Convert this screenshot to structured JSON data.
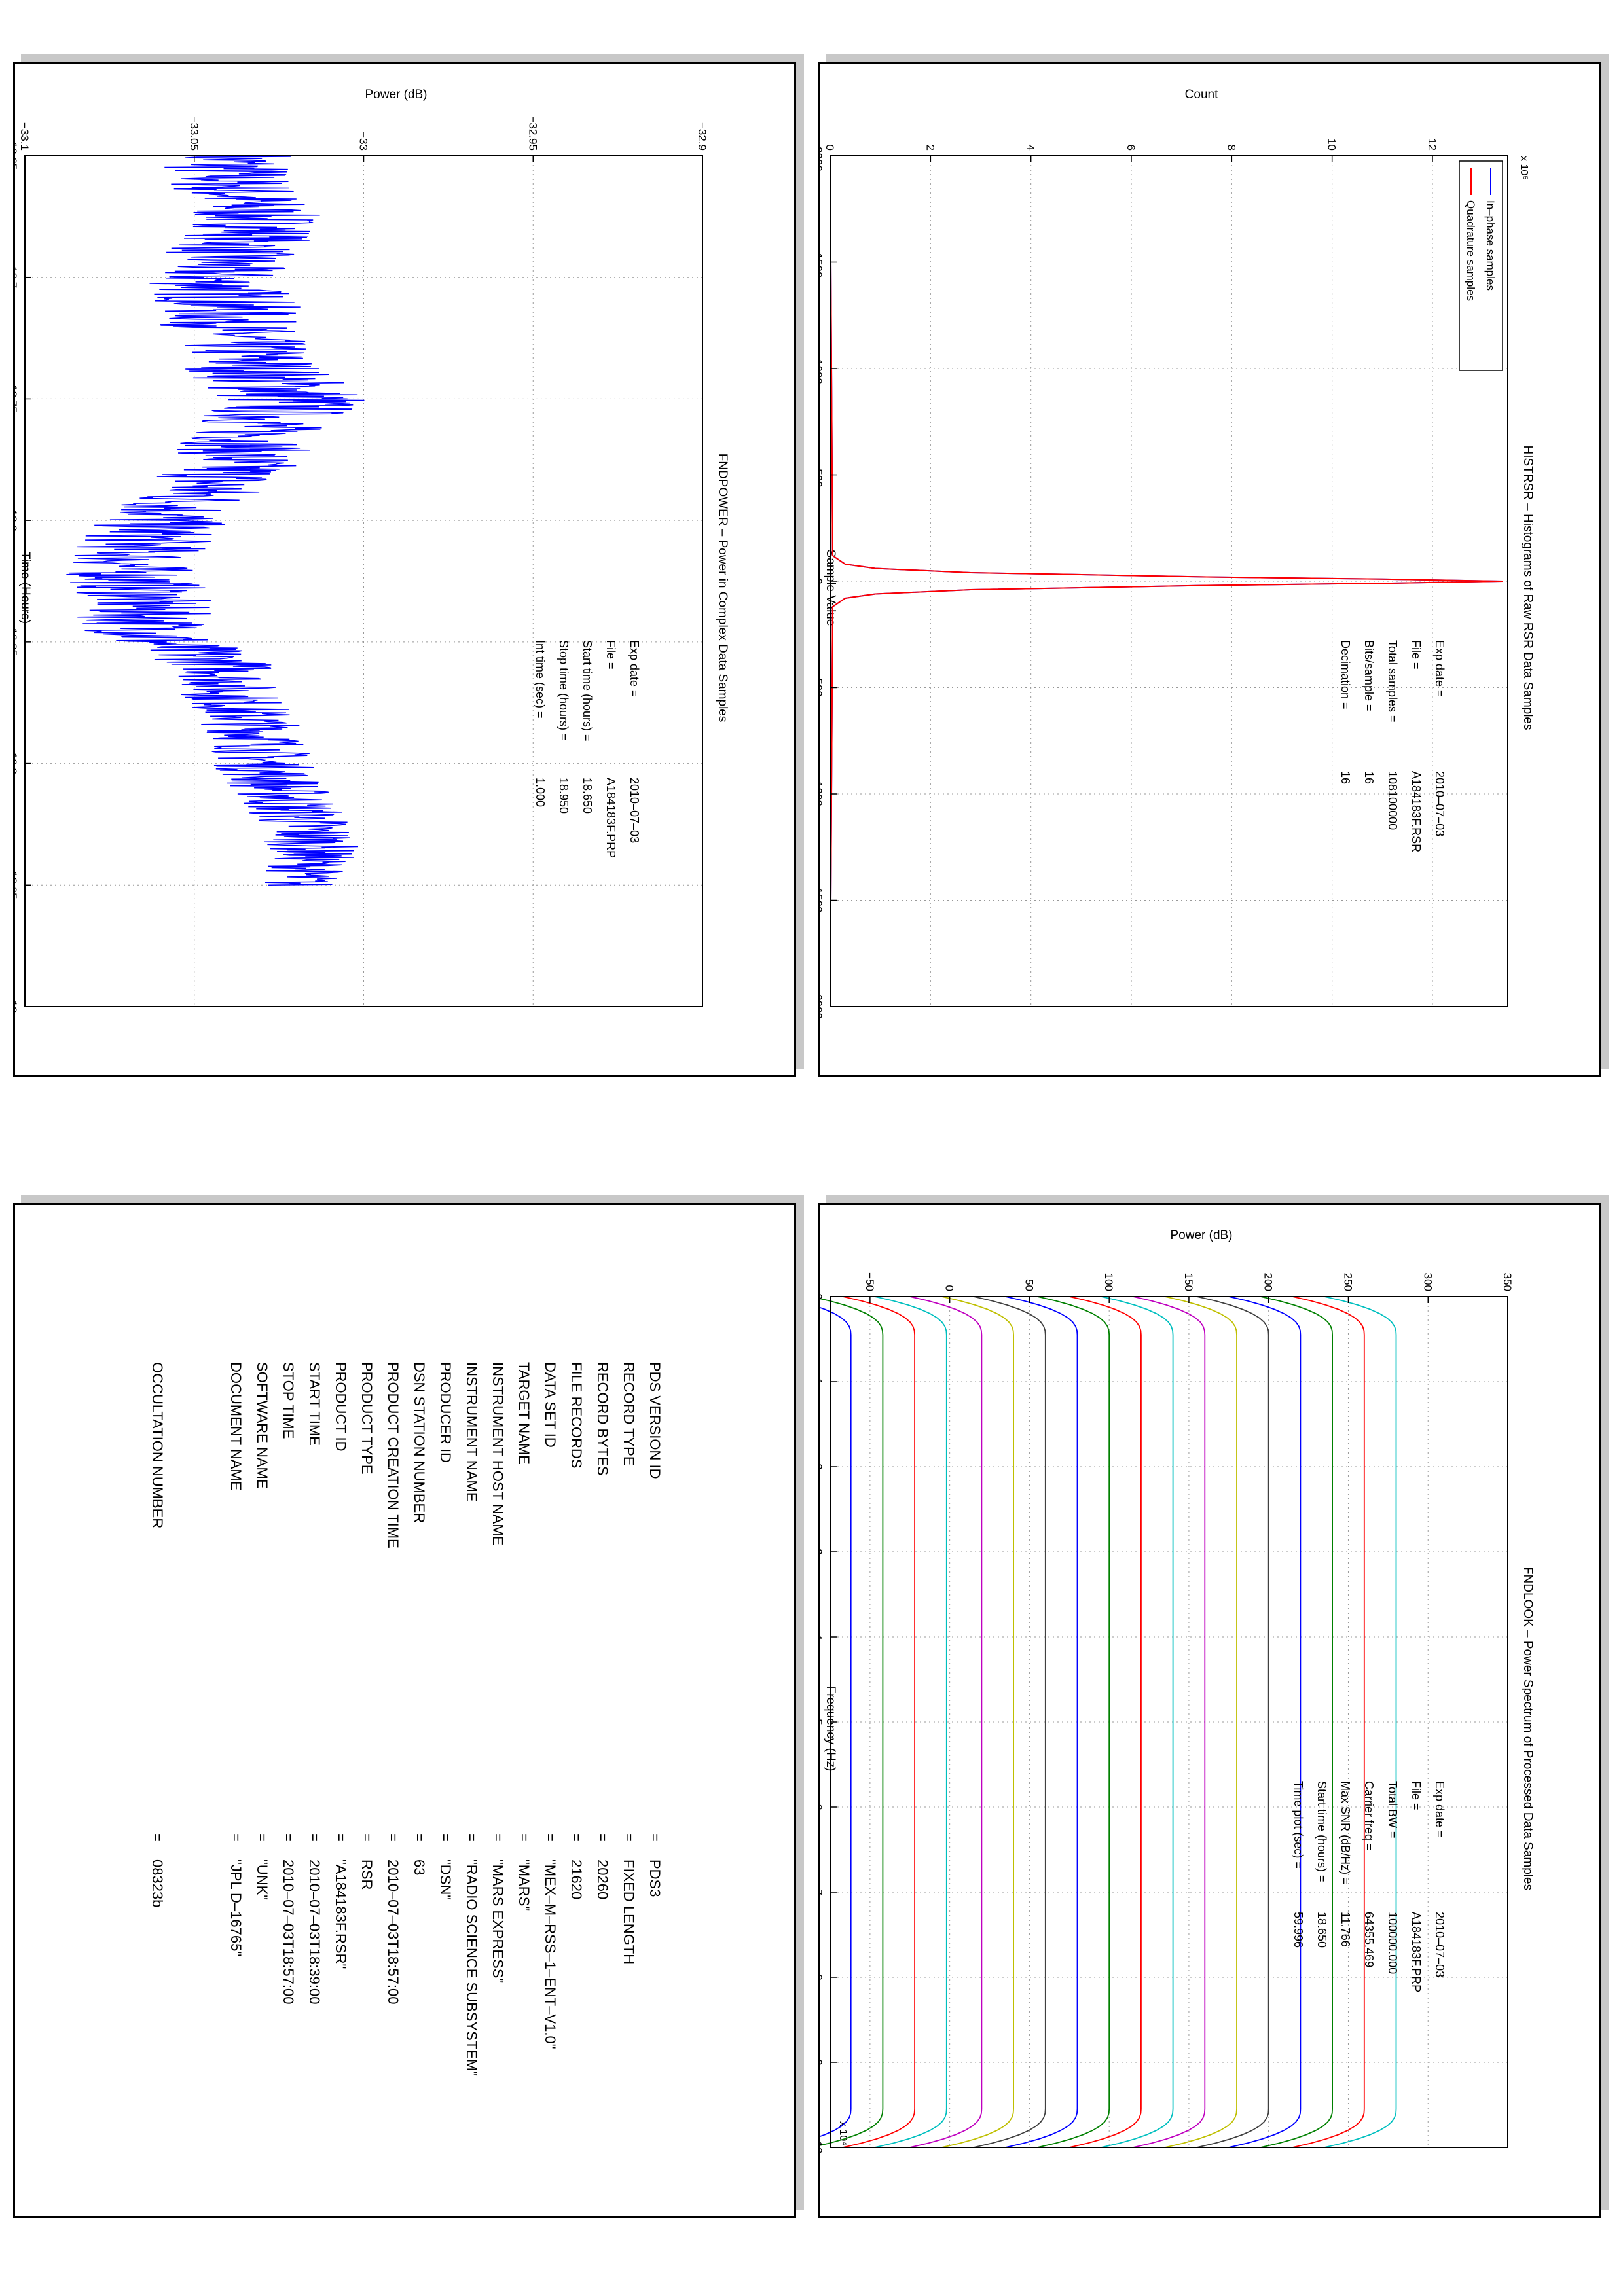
{
  "colors": {
    "inphase": "#0000ff",
    "quadrature": "#ff0000",
    "power_trace": "#0000ff",
    "grid": "#999999",
    "panel_shadow": "#c8c8c8",
    "look_series": [
      "#0000ff",
      "#008000",
      "#ff0000",
      "#00bfbf",
      "#bf00bf",
      "#bfbf00",
      "#404040",
      "#0000ff",
      "#008000",
      "#ff0000",
      "#00bfbf",
      "#bf00bf",
      "#bfbf00",
      "#404040",
      "#0000ff",
      "#008000",
      "#ff0000",
      "#00bfbf"
    ]
  },
  "chart_data": [
    {
      "id": "histrsr",
      "type": "line",
      "title": "HISTRSR – Histograms of Raw RSR Data Samples",
      "xlabel": "Sample Value",
      "ylabel": "Count",
      "y_multiplier": "x 10⁵",
      "xlim": [
        -2000,
        2000
      ],
      "ylim": [
        0,
        13.5
      ],
      "xticks": [
        -2000,
        -1500,
        -1000,
        -500,
        0,
        500,
        1000,
        1500,
        2000
      ],
      "xtick_labels": [
        "−2000",
        "−1500",
        "−1000",
        "−500",
        "0",
        "500",
        "1000",
        "1500",
        "2000"
      ],
      "yticks": [
        0,
        2,
        4,
        6,
        8,
        10,
        12
      ],
      "grid": true,
      "legend_position": "top-left",
      "series": [
        {
          "name": "In–phase samples",
          "color": "#0000ff",
          "x": [
            -2000,
            -120,
            -80,
            -60,
            -40,
            -20,
            -10,
            0,
            10,
            20,
            40,
            60,
            80,
            120,
            2000
          ],
          "y": [
            0,
            0.05,
            0.3,
            0.9,
            2.8,
            7.5,
            11.0,
            13.4,
            11.0,
            7.5,
            2.8,
            0.9,
            0.3,
            0.05,
            0
          ]
        },
        {
          "name": "Quadrature samples",
          "color": "#ff0000",
          "x": [
            -2000,
            -120,
            -80,
            -60,
            -40,
            -20,
            -10,
            0,
            10,
            20,
            40,
            60,
            80,
            120,
            2000
          ],
          "y": [
            0,
            0.05,
            0.3,
            0.9,
            2.8,
            7.5,
            11.0,
            13.4,
            11.0,
            7.5,
            2.8,
            0.9,
            0.3,
            0.05,
            0
          ]
        }
      ],
      "annotations": [
        {
          "label": "Exp date =",
          "value": "2010–07–03"
        },
        {
          "label": "File =",
          "value": "A184183F.RSR"
        },
        {
          "label": "Total samples =",
          "value": "108100000"
        },
        {
          "label": "Bits/sample =",
          "value": "16"
        },
        {
          "label": "Decimation =",
          "value": "16"
        }
      ]
    },
    {
      "id": "fndpower",
      "type": "line",
      "title": "FNDPOWER – Power in Complex Data Samples",
      "xlabel": "Time (Hours)",
      "ylabel": "Power (dB)",
      "xlim": [
        18.65,
        19.0
      ],
      "ylim": [
        -33.1,
        -32.9
      ],
      "xticks": [
        18.65,
        18.7,
        18.75,
        18.8,
        18.85,
        18.9,
        18.95,
        19.0
      ],
      "xtick_labels": [
        "18.65",
        "18.7",
        "18.75",
        "18.8",
        "18.85",
        "18.9",
        "18.95",
        "19"
      ],
      "yticks": [
        -33.1,
        -33.05,
        -33.0,
        -32.95,
        -32.9
      ],
      "ytick_labels": [
        "−33.1",
        "−33.05",
        "−33",
        "−32.95",
        "−32.9"
      ],
      "grid": true,
      "series": [
        {
          "name": "",
          "color": "#0000ff",
          "x": [
            18.65,
            18.66,
            18.67,
            18.68,
            18.69,
            18.7,
            18.71,
            18.72,
            18.73,
            18.74,
            18.75,
            18.76,
            18.77,
            18.78,
            18.79,
            18.8,
            18.81,
            18.82,
            18.83,
            18.84,
            18.85,
            18.86,
            18.87,
            18.88,
            18.89,
            18.9,
            18.91,
            18.92,
            18.93,
            18.94,
            18.95
          ],
          "y": [
            -33.04,
            -33.04,
            -33.035,
            -33.03,
            -33.04,
            -33.045,
            -33.04,
            -33.04,
            -33.035,
            -33.03,
            -33.02,
            -33.03,
            -33.035,
            -33.04,
            -33.05,
            -33.06,
            -33.065,
            -33.07,
            -33.065,
            -33.065,
            -33.06,
            -33.04,
            -33.04,
            -33.035,
            -33.03,
            -33.03,
            -33.025,
            -33.02,
            -33.015,
            -33.015,
            -33.02
          ],
          "spread": [
            0.022,
            0.02,
            0.02,
            0.02,
            0.02,
            0.02,
            0.022,
            0.02,
            0.02,
            0.022,
            0.025,
            0.02,
            0.02,
            0.02,
            0.02,
            0.02,
            0.02,
            0.02,
            0.02,
            0.02,
            0.02,
            0.015,
            0.015,
            0.015,
            0.015,
            0.015,
            0.015,
            0.015,
            0.015,
            0.012,
            0.012
          ]
        }
      ],
      "annotations": [
        {
          "label": "Exp date =",
          "value": "2010–07–03"
        },
        {
          "label": "File =",
          "value": "A184183F.PRP"
        },
        {
          "label": "Start time (hours) =",
          "value": "18.650"
        },
        {
          "label": "Stop time (hours) =",
          "value": "18.950"
        },
        {
          "label": "Int time (sec) =",
          "value": "1.000"
        }
      ]
    },
    {
      "id": "fndlook",
      "type": "line",
      "title": "FNDLOOK – Power Spectrum of Processed Data Samples",
      "xlabel": "Frequency (Hz)",
      "ylabel": "Power (dB)",
      "x_multiplier": "x 10⁴",
      "xlim": [
        0,
        10
      ],
      "ylim": [
        -75,
        350
      ],
      "xticks": [
        0,
        1,
        2,
        3,
        4,
        5,
        6,
        7,
        8,
        9,
        10
      ],
      "yticks": [
        -50,
        0,
        50,
        100,
        150,
        200,
        250,
        300,
        350
      ],
      "ytick_labels": [
        "−50",
        "0",
        "50",
        "100",
        "150",
        "200",
        "250",
        "300",
        "350"
      ],
      "grid": true,
      "series_levels": [
        -62,
        -42,
        -22,
        -2,
        20,
        40,
        60,
        80,
        100,
        120,
        140,
        160,
        180,
        200,
        220,
        240,
        260,
        280
      ],
      "edge_drop": 45,
      "annotations": [
        {
          "label": "Exp date =",
          "value": "2010–07–03"
        },
        {
          "label": "File =",
          "value": "A184183F.PRP"
        },
        {
          "label": "Total BW =",
          "value": "100000.000"
        },
        {
          "label": "Carrier freq =",
          "value": "64355.469"
        },
        {
          "label": "Max SNR (dB/Hz) =",
          "value": "11.766"
        },
        {
          "label": "Start time (hours) =",
          "value": "18.650"
        },
        {
          "label": "Time plot (sec) =",
          "value": "59.996"
        }
      ]
    }
  ],
  "label_table": {
    "rows": [
      {
        "key": "PDS VERSION ID",
        "value": "PDS3"
      },
      {
        "key": "RECORD TYPE",
        "value": "FIXED LENGTH"
      },
      {
        "key": "RECORD BYTES",
        "value": "20260"
      },
      {
        "key": "FILE RECORDS",
        "value": "21620"
      },
      {
        "key": "DATA SET ID",
        "value": "\"MEX–M–RSS–1–ENT–V1.0\""
      },
      {
        "key": "TARGET NAME",
        "value": "\"MARS\""
      },
      {
        "key": "INSTRUMENT HOST NAME",
        "value": "\"MARS EXPRESS\""
      },
      {
        "key": "INSTRUMENT NAME",
        "value": "\"RADIO SCIENCE SUBSYSTEM\""
      },
      {
        "key": "PRODUCER ID",
        "value": "\"DSN\""
      },
      {
        "key": "DSN STATION NUMBER",
        "value": "63"
      },
      {
        "key": "PRODUCT CREATION TIME",
        "value": "2010–07–03T18:57:00"
      },
      {
        "key": "PRODUCT TYPE",
        "value": "RSR"
      },
      {
        "key": "PRODUCT ID",
        "value": "\"A184183F.RSR\""
      },
      {
        "key": "START TIME",
        "value": "2010–07–03T18:39:00"
      },
      {
        "key": "STOP TIME",
        "value": "2010–07–03T18:57:00"
      },
      {
        "key": "SOFTWARE NAME",
        "value": "\"UNK\""
      },
      {
        "key": "DOCUMENT NAME",
        "value": "\"JPL D–16765\""
      }
    ],
    "extra": {
      "key": "OCCULTATION NUMBER",
      "value": "08323b"
    },
    "eq": "="
  }
}
